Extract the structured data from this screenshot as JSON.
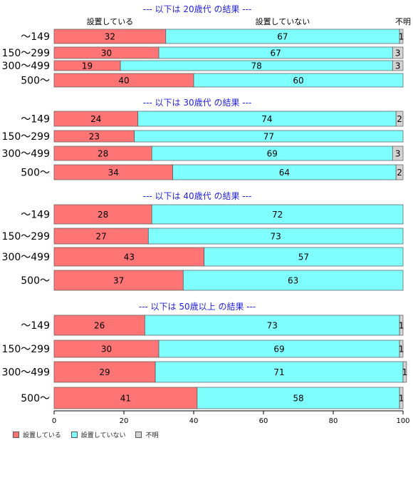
{
  "chart_data": {
    "type": "bar",
    "orientation": "horizontal",
    "stacked": true,
    "xlim": [
      0,
      100
    ],
    "xticks": [
      "0",
      "20",
      "40",
      "60",
      "80",
      "100"
    ],
    "top_labels": [
      "設置している",
      "設置していない",
      "不明"
    ],
    "legend": {
      "placement": "bottom-left",
      "entries": [
        {
          "name": "設置している",
          "color": "#ff7575"
        },
        {
          "name": "設置していない",
          "color": "#80ffff"
        },
        {
          "name": "不明",
          "color": "#d3d3d3"
        }
      ]
    },
    "panels": [
      {
        "title": "--- 以下は 20歳代 の結果 ---",
        "categories": [
          "〜149",
          "150〜299",
          "300〜499",
          "500〜"
        ],
        "series": [
          {
            "name": "設置している",
            "values": [
              32,
              30,
              19,
              40
            ]
          },
          {
            "name": "設置していない",
            "values": [
              67,
              67,
              78,
              60
            ]
          },
          {
            "name": "不明",
            "values": [
              1,
              3,
              3,
              0
            ]
          }
        ]
      },
      {
        "title": "--- 以下は 30歳代 の結果 ---",
        "categories": [
          "〜149",
          "150〜299",
          "300〜499",
          "500〜"
        ],
        "series": [
          {
            "name": "設置している",
            "values": [
              24,
              23,
              28,
              34
            ]
          },
          {
            "name": "設置していない",
            "values": [
              74,
              77,
              69,
              64
            ]
          },
          {
            "name": "不明",
            "values": [
              2,
              0,
              3,
              2
            ]
          }
        ]
      },
      {
        "title": "--- 以下は 40歳代 の結果 ---",
        "categories": [
          "〜149",
          "150〜299",
          "300〜499",
          "500〜"
        ],
        "series": [
          {
            "name": "設置している",
            "values": [
              28,
              27,
              43,
              37
            ]
          },
          {
            "name": "設置していない",
            "values": [
              72,
              73,
              57,
              63
            ]
          },
          {
            "name": "不明",
            "values": [
              0,
              0,
              0,
              0
            ]
          }
        ]
      },
      {
        "title": "--- 以下は 50歳以上 の結果 ---",
        "categories": [
          "〜149",
          "150〜299",
          "300〜499",
          "500〜"
        ],
        "series": [
          {
            "name": "設置している",
            "values": [
              26,
              30,
              29,
              41
            ]
          },
          {
            "name": "設置していない",
            "values": [
              73,
              69,
              71,
              58
            ]
          },
          {
            "name": "不明",
            "values": [
              1,
              1,
              1,
              1
            ]
          }
        ]
      }
    ]
  }
}
